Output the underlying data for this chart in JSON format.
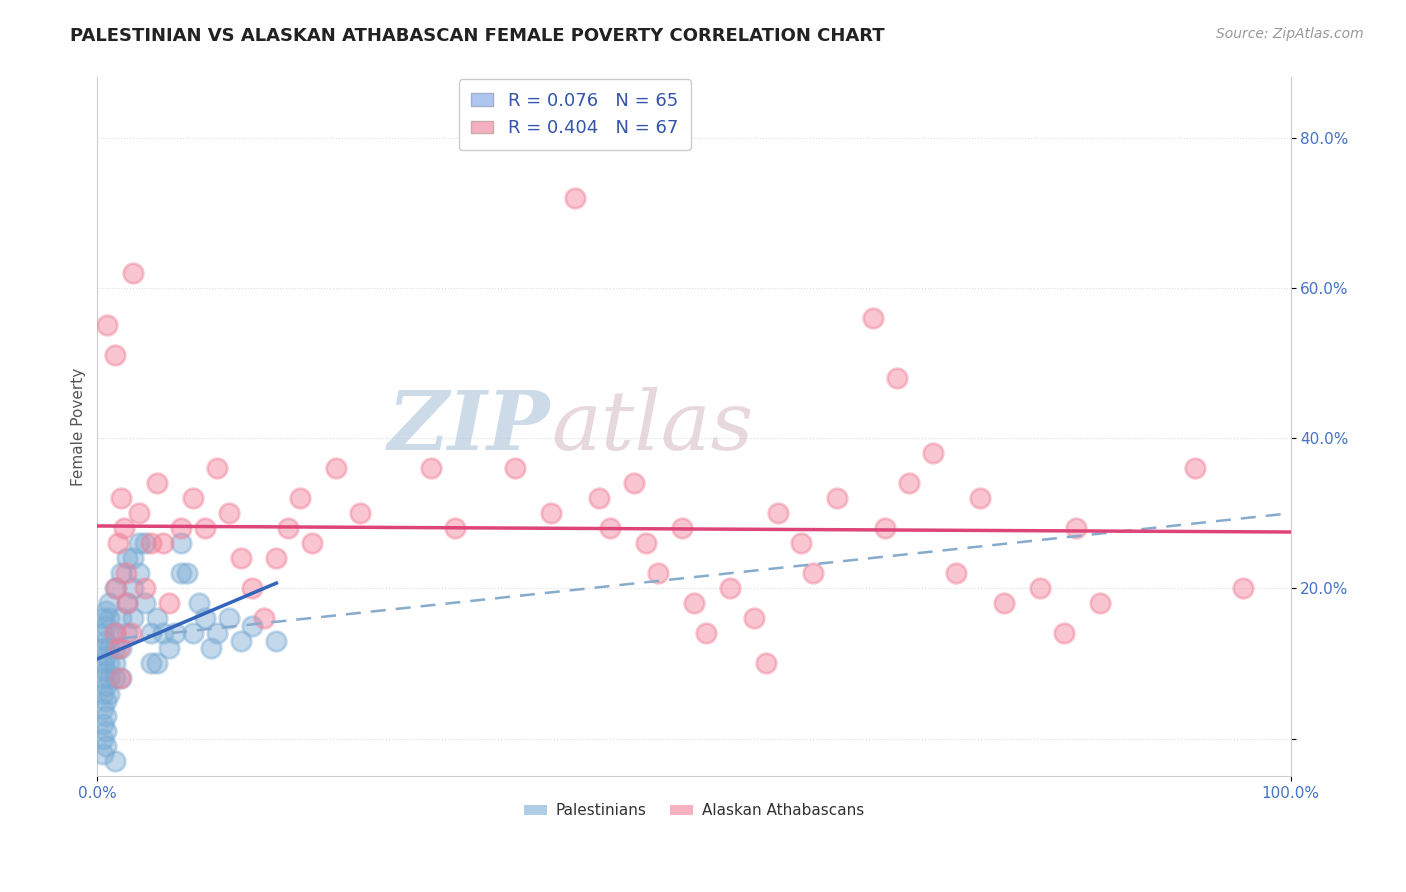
{
  "title": "PALESTINIAN VS ALASKAN ATHABASCAN FEMALE POVERTY CORRELATION CHART",
  "source": "Source: ZipAtlas.com",
  "ylabel": "Female Poverty",
  "xlim": [
    0.0,
    1.0
  ],
  "ylim": [
    -0.05,
    0.88
  ],
  "yticks": [
    0.0,
    0.2,
    0.4,
    0.6,
    0.8
  ],
  "ytick_labels": [
    "",
    "20.0%",
    "40.0%",
    "60.0%",
    "80.0%"
  ],
  "xtick_labels": [
    "0.0%",
    "100.0%"
  ],
  "xticks": [
    0.0,
    1.0
  ],
  "legend_R_blue": "0.076",
  "legend_N_blue": "65",
  "legend_R_pink": "0.404",
  "legend_N_pink": "67",
  "blue_scatter_color": "#7bacd4",
  "pink_scatter_color": "#f08098",
  "blue_line_color": "#3366bb",
  "pink_line_color": "#dd4477",
  "dashed_line_color": "#88aacc",
  "background_color": "#ffffff",
  "grid_color": "#dddddd",
  "title_color": "#222222",
  "source_color": "#999999",
  "watermark_zip_color": "#c8d8e8",
  "watermark_atlas_color": "#d8c8d0",
  "blue_points": [
    [
      0.005,
      0.12
    ],
    [
      0.005,
      0.1
    ],
    [
      0.005,
      0.08
    ],
    [
      0.005,
      0.06
    ],
    [
      0.005,
      0.04
    ],
    [
      0.005,
      0.02
    ],
    [
      0.005,
      0.0
    ],
    [
      0.005,
      -0.02
    ],
    [
      0.005,
      0.14
    ],
    [
      0.005,
      0.16
    ],
    [
      0.007,
      0.13
    ],
    [
      0.007,
      0.11
    ],
    [
      0.007,
      0.09
    ],
    [
      0.007,
      0.07
    ],
    [
      0.007,
      0.05
    ],
    [
      0.007,
      0.03
    ],
    [
      0.007,
      0.01
    ],
    [
      0.007,
      -0.01
    ],
    [
      0.007,
      0.15
    ],
    [
      0.007,
      0.17
    ],
    [
      0.01,
      0.12
    ],
    [
      0.01,
      0.1
    ],
    [
      0.01,
      0.08
    ],
    [
      0.01,
      0.06
    ],
    [
      0.01,
      0.18
    ],
    [
      0.01,
      0.16
    ],
    [
      0.015,
      0.14
    ],
    [
      0.015,
      0.12
    ],
    [
      0.015,
      0.1
    ],
    [
      0.015,
      0.08
    ],
    [
      0.015,
      0.2
    ],
    [
      0.015,
      -0.03
    ],
    [
      0.02,
      0.22
    ],
    [
      0.02,
      0.16
    ],
    [
      0.02,
      0.12
    ],
    [
      0.02,
      0.08
    ],
    [
      0.025,
      0.24
    ],
    [
      0.025,
      0.18
    ],
    [
      0.025,
      0.14
    ],
    [
      0.03,
      0.24
    ],
    [
      0.03,
      0.2
    ],
    [
      0.03,
      0.16
    ],
    [
      0.035,
      0.26
    ],
    [
      0.035,
      0.22
    ],
    [
      0.04,
      0.26
    ],
    [
      0.04,
      0.18
    ],
    [
      0.045,
      0.14
    ],
    [
      0.045,
      0.1
    ],
    [
      0.05,
      0.16
    ],
    [
      0.05,
      0.1
    ],
    [
      0.055,
      0.14
    ],
    [
      0.06,
      0.12
    ],
    [
      0.065,
      0.14
    ],
    [
      0.07,
      0.22
    ],
    [
      0.07,
      0.26
    ],
    [
      0.075,
      0.22
    ],
    [
      0.08,
      0.14
    ],
    [
      0.085,
      0.18
    ],
    [
      0.09,
      0.16
    ],
    [
      0.095,
      0.12
    ],
    [
      0.1,
      0.14
    ],
    [
      0.11,
      0.16
    ],
    [
      0.12,
      0.13
    ],
    [
      0.13,
      0.15
    ],
    [
      0.15,
      0.13
    ]
  ],
  "pink_points": [
    [
      0.008,
      0.55
    ],
    [
      0.015,
      0.51
    ],
    [
      0.015,
      0.14
    ],
    [
      0.016,
      0.2
    ],
    [
      0.017,
      0.26
    ],
    [
      0.018,
      0.12
    ],
    [
      0.019,
      0.08
    ],
    [
      0.02,
      0.32
    ],
    [
      0.022,
      0.28
    ],
    [
      0.024,
      0.22
    ],
    [
      0.025,
      0.18
    ],
    [
      0.028,
      0.14
    ],
    [
      0.03,
      0.62
    ],
    [
      0.035,
      0.3
    ],
    [
      0.04,
      0.2
    ],
    [
      0.045,
      0.26
    ],
    [
      0.05,
      0.34
    ],
    [
      0.055,
      0.26
    ],
    [
      0.06,
      0.18
    ],
    [
      0.07,
      0.28
    ],
    [
      0.08,
      0.32
    ],
    [
      0.09,
      0.28
    ],
    [
      0.1,
      0.36
    ],
    [
      0.11,
      0.3
    ],
    [
      0.12,
      0.24
    ],
    [
      0.13,
      0.2
    ],
    [
      0.14,
      0.16
    ],
    [
      0.15,
      0.24
    ],
    [
      0.16,
      0.28
    ],
    [
      0.17,
      0.32
    ],
    [
      0.18,
      0.26
    ],
    [
      0.2,
      0.36
    ],
    [
      0.22,
      0.3
    ],
    [
      0.28,
      0.36
    ],
    [
      0.3,
      0.28
    ],
    [
      0.35,
      0.36
    ],
    [
      0.38,
      0.3
    ],
    [
      0.4,
      0.72
    ],
    [
      0.42,
      0.32
    ],
    [
      0.43,
      0.28
    ],
    [
      0.45,
      0.34
    ],
    [
      0.46,
      0.26
    ],
    [
      0.47,
      0.22
    ],
    [
      0.49,
      0.28
    ],
    [
      0.5,
      0.18
    ],
    [
      0.51,
      0.14
    ],
    [
      0.53,
      0.2
    ],
    [
      0.55,
      0.16
    ],
    [
      0.56,
      0.1
    ],
    [
      0.57,
      0.3
    ],
    [
      0.59,
      0.26
    ],
    [
      0.6,
      0.22
    ],
    [
      0.62,
      0.32
    ],
    [
      0.65,
      0.56
    ],
    [
      0.66,
      0.28
    ],
    [
      0.67,
      0.48
    ],
    [
      0.68,
      0.34
    ],
    [
      0.7,
      0.38
    ],
    [
      0.72,
      0.22
    ],
    [
      0.74,
      0.32
    ],
    [
      0.76,
      0.18
    ],
    [
      0.79,
      0.2
    ],
    [
      0.81,
      0.14
    ],
    [
      0.82,
      0.28
    ],
    [
      0.84,
      0.18
    ],
    [
      0.92,
      0.36
    ],
    [
      0.96,
      0.2
    ]
  ]
}
